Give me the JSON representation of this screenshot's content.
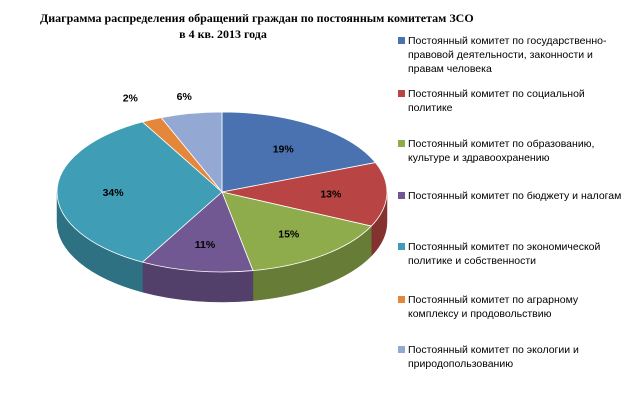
{
  "chart_data": {
    "type": "pie",
    "title_lines": [
      "Диаграмма распределения обращений граждан по постоянным комитетам ЗСО",
      "в 4 кв. 2013 года"
    ],
    "slices": [
      {
        "label": "Постоянный комитет по государственно-правовой деятельности, законности и правам человека",
        "value": 19,
        "value_label": "19%",
        "color": "#4a72b0"
      },
      {
        "label": "Постоянный комитет по социальной политике",
        "value": 13,
        "value_label": "13%",
        "color": "#b84543"
      },
      {
        "label": "Постоянный комитет по образованию, культуре и здравоохранению",
        "value": 15,
        "value_label": "15%",
        "color": "#8eac4c"
      },
      {
        "label": "Постоянный комитет по бюджету и налогам",
        "value": 11,
        "value_label": "11%",
        "color": "#725893"
      },
      {
        "label": "Постоянный комитет по экономической политике и собственности",
        "value": 34,
        "value_label": "34%",
        "color": "#3f9db5"
      },
      {
        "label": "Постоянный комитет по аграрному комплексу и продовольствию",
        "value": 2,
        "value_label": "2%",
        "color": "#e5873a"
      },
      {
        "label": "Постоянный комитет по экологии и природопользованию",
        "value": 6,
        "value_label": "6%",
        "color": "#93a9d4"
      }
    ],
    "legend_position": "right",
    "view": "3d-tilted"
  }
}
